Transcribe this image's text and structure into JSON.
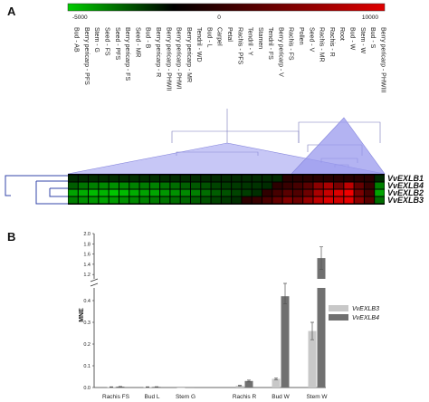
{
  "panel_a": {
    "letter": "A",
    "scale": {
      "min_label": "-5000",
      "mid_label": "0",
      "max_label": "10000",
      "colors": [
        "#00cc00",
        "#000000",
        "#e00000"
      ]
    },
    "samples": [
      "Bud - AB",
      "Berry pericarp - PFS",
      "Stem - G",
      "Seed - FS",
      "Seed - PFS",
      "Berry pericarp - FS",
      "Seed - MR",
      "Bud - B",
      "Berry pericarp - R",
      "Berry pericarp - PHWII",
      "Berry pericarp - PHWI",
      "Berry pericarp - MR",
      "Tendril - WD",
      "Bud - L",
      "Carpel",
      "Petal",
      "Rachis - PFS",
      "Tendril - Y",
      "Stamen",
      "Tendril - FS",
      "Berry pericarp - V",
      "Rachis - FS",
      "Pollen",
      "Seed - V",
      "Rachis - MR",
      "Rachis - R",
      "Root",
      "Bud - W",
      "Stem - W",
      "Bud - S",
      "Berry pericarp - PHWIII"
    ],
    "genes": [
      "VvEXLB1",
      "VvEXLB4",
      "VvEXLB2",
      "VvEXLB3"
    ],
    "heat_values": [
      [
        -50,
        -50,
        -100,
        -100,
        -150,
        -150,
        -200,
        -150,
        -200,
        -150,
        -100,
        -100,
        -100,
        -50,
        -50,
        -50,
        -50,
        -50,
        -50,
        -50,
        -50,
        0,
        0,
        0,
        0,
        0,
        0,
        0,
        50,
        0,
        -50
      ],
      [
        -1500,
        -2200,
        -2500,
        -2800,
        -3000,
        -2800,
        -2600,
        -2400,
        -2600,
        -2200,
        -2000,
        -1600,
        -1400,
        -1200,
        -800,
        -600,
        -500,
        -400,
        -300,
        -100,
        200,
        800,
        1500,
        2500,
        5000,
        6500,
        4000,
        7500,
        3000,
        800,
        -2500
      ],
      [
        -3500,
        -3800,
        -4200,
        -4000,
        -4500,
        -4200,
        -3800,
        -3500,
        -3600,
        -3200,
        -3000,
        -2800,
        -2500,
        -2000,
        -1500,
        -1200,
        -800,
        -600,
        -200,
        400,
        1500,
        2500,
        2000,
        3500,
        6500,
        8000,
        9000,
        10000,
        4000,
        1500,
        -3500
      ],
      [
        -2500,
        -3000,
        -3200,
        -3500,
        -3300,
        -3000,
        -2800,
        -2600,
        -2400,
        -2200,
        -2000,
        -1800,
        -1500,
        -1200,
        -800,
        -500,
        -200,
        200,
        800,
        1800,
        3000,
        4500,
        3500,
        5500,
        7500,
        9000,
        8500,
        9500,
        5000,
        2500,
        -2000
      ]
    ]
  },
  "panel_b": {
    "letter": "B",
    "chart_data": {
      "type": "bar",
      "categories": [
        "Rachis FS",
        "Bud L",
        "Stem G",
        "Rachis R",
        "Bud W",
        "Stem W"
      ],
      "series": [
        {
          "name": "VvEXLB3",
          "color": "#c8c8c8",
          "values": [
            0.002,
            0.002,
            0.0,
            0.008,
            0.04,
            0.26
          ],
          "errors": [
            0.001,
            0.001,
            0.0,
            0.002,
            0.004,
            0.04
          ]
        },
        {
          "name": "VvEXLB4",
          "color": "#707070",
          "values": [
            0.004,
            0.003,
            0.001,
            0.03,
            0.42,
            1.52
          ],
          "errors": [
            0.001,
            0.001,
            0.0,
            0.004,
            0.035,
            0.22
          ]
        }
      ],
      "ylabel": "MNE",
      "lower_ticks": [
        "0.0",
        "0.1",
        "0.2",
        "0.3",
        "0.4"
      ],
      "upper_ticks": [
        "1.2",
        "1.4",
        "1.6",
        "1.8",
        "2.0"
      ],
      "axis_break": [
        0.45,
        1.15
      ],
      "ylim": [
        0,
        2.0
      ]
    }
  }
}
